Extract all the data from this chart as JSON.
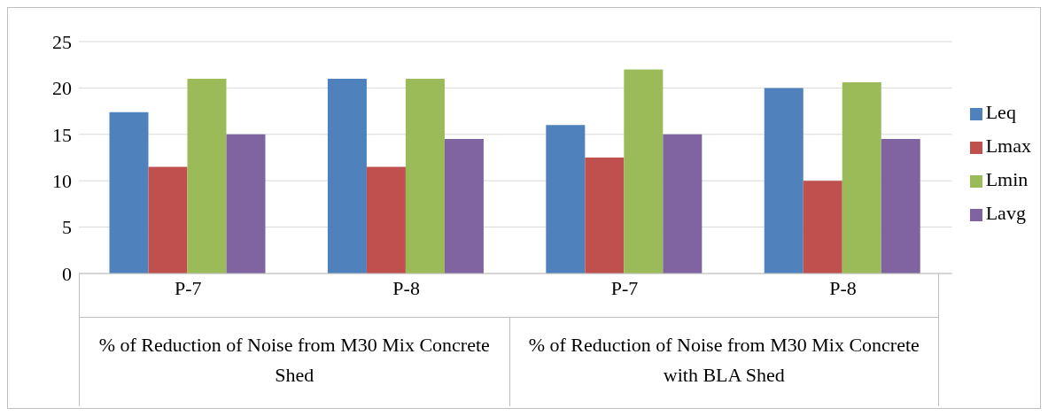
{
  "chart_data": {
    "type": "bar",
    "categories": [
      "P-7",
      "P-8",
      "P-7",
      "P-8"
    ],
    "series": [
      {
        "name": "Leq",
        "color": "#4f81bd",
        "values": [
          17.4,
          21,
          16,
          20
        ]
      },
      {
        "name": "Lmax",
        "color": "#c0504d",
        "values": [
          11.5,
          11.5,
          12.5,
          10
        ]
      },
      {
        "name": "Lmin",
        "color": "#9bbb59",
        "values": [
          21,
          21,
          22,
          20.6
        ]
      },
      {
        "name": "Lavg",
        "color": "#8064a2",
        "values": [
          15,
          14.5,
          15,
          14.5
        ]
      }
    ],
    "ylim": [
      0,
      25
    ],
    "yticks": [
      0,
      5,
      10,
      15,
      20,
      25
    ],
    "grid": "y",
    "legend": "right",
    "annotations": [
      "% of Reduction of Noise from M30 Mix Concrete Shed",
      "% of Reduction of Noise from M30 Mix Concrete with BLA Shed"
    ]
  }
}
